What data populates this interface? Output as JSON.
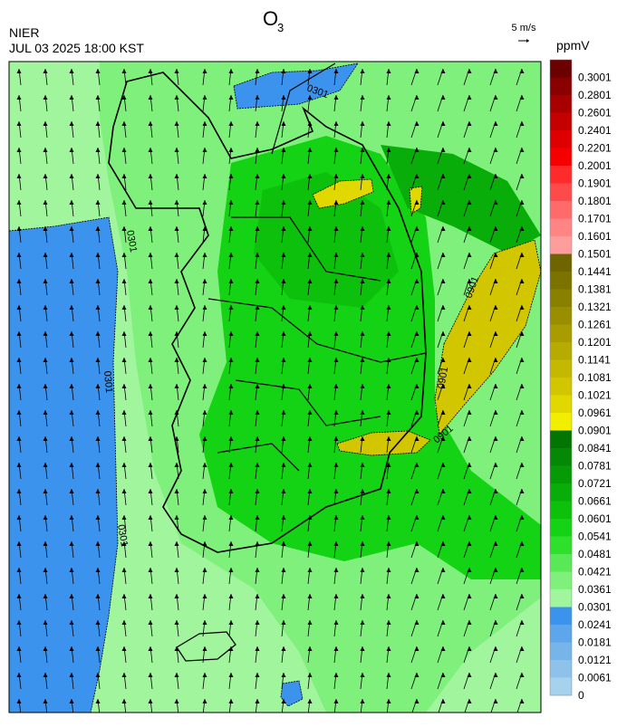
{
  "header": {
    "agency": "NIER",
    "datetime": "JUL 03 2025 18:00 KST",
    "title": "O",
    "title_sub": "3"
  },
  "wind_scale": "5 m/s",
  "colorbar": {
    "unit": "ppmV",
    "levels": [
      {
        "label": "0.3001",
        "color": "#6b0000"
      },
      {
        "label": "0.2801",
        "color": "#8a0000"
      },
      {
        "label": "0.2601",
        "color": "#a80000"
      },
      {
        "label": "0.2401",
        "color": "#c40000"
      },
      {
        "label": "0.2201",
        "color": "#de0000"
      },
      {
        "label": "0.2001",
        "color": "#f50000"
      },
      {
        "label": "0.1901",
        "color": "#ff2a2a"
      },
      {
        "label": "0.1801",
        "color": "#ff4a4a"
      },
      {
        "label": "0.1701",
        "color": "#ff6a6a"
      },
      {
        "label": "0.1601",
        "color": "#ff8585"
      },
      {
        "label": "0.1501",
        "color": "#ff9d9d"
      },
      {
        "label": "0.1441",
        "color": "#6e6400"
      },
      {
        "label": "0.1381",
        "color": "#7c7200"
      },
      {
        "label": "0.1321",
        "color": "#8a8000"
      },
      {
        "label": "0.1261",
        "color": "#998e00"
      },
      {
        "label": "0.1201",
        "color": "#a89c00"
      },
      {
        "label": "0.1141",
        "color": "#b7aa00"
      },
      {
        "label": "0.1081",
        "color": "#c5b800"
      },
      {
        "label": "0.1021",
        "color": "#d2c600"
      },
      {
        "label": "0.0961",
        "color": "#e1d800"
      },
      {
        "label": "0.0901",
        "color": "#f2ee00"
      },
      {
        "label": "0.0841",
        "color": "#037503"
      },
      {
        "label": "0.0781",
        "color": "#058805"
      },
      {
        "label": "0.0721",
        "color": "#079a07"
      },
      {
        "label": "0.0661",
        "color": "#09ad09"
      },
      {
        "label": "0.0601",
        "color": "#0cc00c"
      },
      {
        "label": "0.0541",
        "color": "#14d214"
      },
      {
        "label": "0.0481",
        "color": "#2ee02b"
      },
      {
        "label": "0.0421",
        "color": "#5ae956"
      },
      {
        "label": "0.0361",
        "color": "#7ff07b"
      },
      {
        "label": "0.0301",
        "color": "#a0f59d"
      },
      {
        "label": "0.0241",
        "color": "#3b93ee"
      },
      {
        "label": "0.0181",
        "color": "#5ea6ec"
      },
      {
        "label": "0.0121",
        "color": "#76b4ea"
      },
      {
        "label": "0.0061",
        "color": "#8ec2ea"
      },
      {
        "label": "0",
        "color": "#a6d2ee"
      }
    ]
  },
  "contour_labels": [
    "0301",
    "0301",
    "0301",
    "0301",
    "0901",
    "0901",
    "0901"
  ]
}
